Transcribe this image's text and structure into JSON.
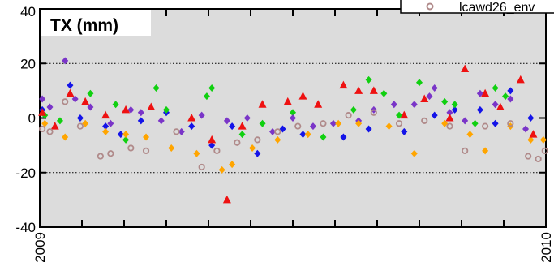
{
  "chart_data": {
    "type": "scatter",
    "title": "TX (mm)",
    "ylim": [
      -40,
      40
    ],
    "xlim": [
      2009,
      2010
    ],
    "y_ticks": [
      40,
      20,
      0,
      -20,
      -40
    ],
    "x_tick_labels": [
      "2009",
      "2010"
    ],
    "grid": "horizontal dotted at 20, 0, -20",
    "legend": {
      "placement": "top-right (partially cut off)",
      "entries": [
        {
          "label": "lcawd26_env",
          "marker": "open-circle",
          "color": "#b08a8a"
        }
      ]
    },
    "series": [
      {
        "marker": "diamond",
        "color": "#1414e8",
        "points": [
          [
            2009.005,
            3
          ],
          [
            2009.06,
            12
          ],
          [
            2009.08,
            0
          ],
          [
            2009.13,
            -3
          ],
          [
            2009.16,
            -6
          ],
          [
            2009.2,
            -1
          ],
          [
            2009.25,
            2
          ],
          [
            2009.3,
            -3
          ],
          [
            2009.34,
            -10
          ],
          [
            2009.38,
            -3
          ],
          [
            2009.43,
            -13
          ],
          [
            2009.48,
            -4
          ],
          [
            2009.52,
            -6
          ],
          [
            2009.6,
            -7
          ],
          [
            2009.65,
            -4
          ],
          [
            2009.72,
            -5
          ],
          [
            2009.78,
            1
          ],
          [
            2009.82,
            3
          ],
          [
            2009.87,
            3
          ],
          [
            2009.9,
            -2
          ],
          [
            2009.93,
            10
          ],
          [
            2009.97,
            0
          ]
        ]
      },
      {
        "marker": "diamond",
        "color": "#10d010",
        "points": [
          [
            2009.01,
            1
          ],
          [
            2009.04,
            -1
          ],
          [
            2009.1,
            9
          ],
          [
            2009.15,
            5
          ],
          [
            2009.17,
            -8
          ],
          [
            2009.23,
            11
          ],
          [
            2009.25,
            3
          ],
          [
            2009.33,
            8
          ],
          [
            2009.34,
            11
          ],
          [
            2009.4,
            -6
          ],
          [
            2009.44,
            -2
          ],
          [
            2009.5,
            2
          ],
          [
            2009.56,
            -7
          ],
          [
            2009.62,
            3
          ],
          [
            2009.65,
            14
          ],
          [
            2009.68,
            9
          ],
          [
            2009.71,
            1
          ],
          [
            2009.75,
            13
          ],
          [
            2009.8,
            6
          ],
          [
            2009.82,
            5
          ],
          [
            2009.86,
            -2
          ],
          [
            2009.9,
            11
          ],
          [
            2009.92,
            8
          ]
        ]
      },
      {
        "marker": "diamond",
        "color": "#7a35c8",
        "points": [
          [
            2009.005,
            7
          ],
          [
            2009.02,
            4
          ],
          [
            2009.05,
            21
          ],
          [
            2009.07,
            7
          ],
          [
            2009.1,
            4
          ],
          [
            2009.14,
            -2
          ],
          [
            2009.18,
            3
          ],
          [
            2009.2,
            2
          ],
          [
            2009.24,
            -1
          ],
          [
            2009.28,
            -5
          ],
          [
            2009.32,
            1
          ],
          [
            2009.37,
            -1
          ],
          [
            2009.41,
            0
          ],
          [
            2009.46,
            -5
          ],
          [
            2009.5,
            0
          ],
          [
            2009.54,
            -3
          ],
          [
            2009.58,
            -2
          ],
          [
            2009.63,
            -1
          ],
          [
            2009.66,
            3
          ],
          [
            2009.7,
            5
          ],
          [
            2009.74,
            5
          ],
          [
            2009.77,
            8
          ],
          [
            2009.78,
            11
          ],
          [
            2009.81,
            2
          ],
          [
            2009.84,
            -1
          ],
          [
            2009.87,
            9
          ],
          [
            2009.9,
            5
          ],
          [
            2009.93,
            7
          ],
          [
            2009.96,
            -4
          ]
        ]
      },
      {
        "marker": "diamond",
        "color": "#ffa500",
        "points": [
          [
            2009.01,
            -2
          ],
          [
            2009.05,
            -7
          ],
          [
            2009.09,
            -2
          ],
          [
            2009.13,
            -5
          ],
          [
            2009.17,
            -6
          ],
          [
            2009.21,
            -7
          ],
          [
            2009.26,
            -11
          ],
          [
            2009.31,
            -13
          ],
          [
            2009.36,
            -19
          ],
          [
            2009.38,
            -17
          ],
          [
            2009.42,
            -11
          ],
          [
            2009.47,
            -8
          ],
          [
            2009.53,
            -6
          ],
          [
            2009.59,
            -2
          ],
          [
            2009.63,
            -2
          ],
          [
            2009.69,
            -3
          ],
          [
            2009.74,
            -13
          ],
          [
            2009.8,
            -2
          ],
          [
            2009.85,
            -6
          ],
          [
            2009.88,
            -12
          ],
          [
            2009.93,
            -3
          ],
          [
            2009.97,
            -8
          ],
          [
            2009.995,
            -8
          ]
        ]
      },
      {
        "marker": "triangle",
        "color": "#ee1111",
        "points": [
          [
            2009.005,
            2
          ],
          [
            2009.03,
            -3
          ],
          [
            2009.06,
            9
          ],
          [
            2009.09,
            6
          ],
          [
            2009.13,
            1
          ],
          [
            2009.17,
            3
          ],
          [
            2009.22,
            4
          ],
          [
            2009.3,
            0
          ],
          [
            2009.34,
            -8
          ],
          [
            2009.37,
            -30
          ],
          [
            2009.4,
            -3
          ],
          [
            2009.44,
            5
          ],
          [
            2009.49,
            6
          ],
          [
            2009.52,
            8
          ],
          [
            2009.55,
            5
          ],
          [
            2009.6,
            12
          ],
          [
            2009.63,
            10
          ],
          [
            2009.66,
            10
          ],
          [
            2009.72,
            1
          ],
          [
            2009.76,
            7
          ],
          [
            2009.81,
            0
          ],
          [
            2009.84,
            18
          ],
          [
            2009.88,
            9
          ],
          [
            2009.91,
            4
          ],
          [
            2009.95,
            14
          ],
          [
            2009.975,
            -6
          ]
        ]
      },
      {
        "marker": "open-circle",
        "color": "#b08a8a",
        "points": [
          [
            2009.005,
            -4
          ],
          [
            2009.02,
            -5
          ],
          [
            2009.05,
            6
          ],
          [
            2009.08,
            -3
          ],
          [
            2009.12,
            -14
          ],
          [
            2009.14,
            -13
          ],
          [
            2009.18,
            -11
          ],
          [
            2009.21,
            -12
          ],
          [
            2009.27,
            -5
          ],
          [
            2009.32,
            -18
          ],
          [
            2009.35,
            -12
          ],
          [
            2009.39,
            -9
          ],
          [
            2009.43,
            -8
          ],
          [
            2009.47,
            -5
          ],
          [
            2009.51,
            -3
          ],
          [
            2009.56,
            -2
          ],
          [
            2009.61,
            1
          ],
          [
            2009.66,
            2
          ],
          [
            2009.71,
            -2
          ],
          [
            2009.76,
            -1
          ],
          [
            2009.81,
            -3
          ],
          [
            2009.84,
            -12
          ],
          [
            2009.88,
            -3
          ],
          [
            2009.93,
            -2
          ],
          [
            2009.965,
            -14
          ],
          [
            2009.985,
            -15
          ],
          [
            2009.998,
            -12
          ]
        ]
      }
    ]
  }
}
